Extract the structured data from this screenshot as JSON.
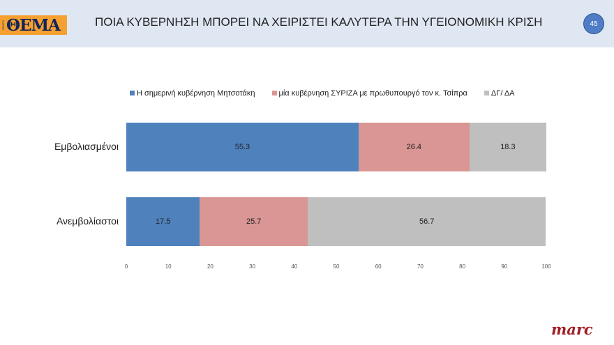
{
  "header": {
    "logo_prefix": "ΠΡΩΤΟ",
    "logo": "ΘΕΜΑ",
    "title": "ΠΟΙΑ ΚΥΒΕΡΝΗΣΗ ΜΠΟΡΕΙ ΝΑ ΧΕΙΡΙΣΤΕΙ ΚΑΛΥΤΕΡΑ ΤΗΝ ΥΓΕΙΟΝΟΜΙΚΗ ΚΡΙΣΗ",
    "page_number": "45"
  },
  "footer": {
    "brand": "marc"
  },
  "chart_data": {
    "type": "bar",
    "orientation": "horizontal",
    "stacked": true,
    "categories": [
      "Εμβολιασμένοι",
      "Ανεμβολίαστοι"
    ],
    "series": [
      {
        "name": "Η σημερινή κυβέρνηση Μητσοτάκη",
        "color": "#4f81bd",
        "values": [
          55.3,
          17.5
        ]
      },
      {
        "name": "μία κυβέρνηση ΣΥΡΙΖΑ με πρωθυπουργό τον κ. Τσίπρα",
        "color": "#d99694",
        "values": [
          26.4,
          25.7
        ]
      },
      {
        "name": "ΔΓ/ ΔΑ",
        "color": "#bfbfbf",
        "values": [
          18.3,
          56.7
        ]
      }
    ],
    "xlim": [
      0,
      100
    ],
    "xticks": [
      "0",
      "10",
      "20",
      "30",
      "40",
      "50",
      "60",
      "70",
      "80",
      "90",
      "100"
    ],
    "legend": "top",
    "grid": false
  }
}
